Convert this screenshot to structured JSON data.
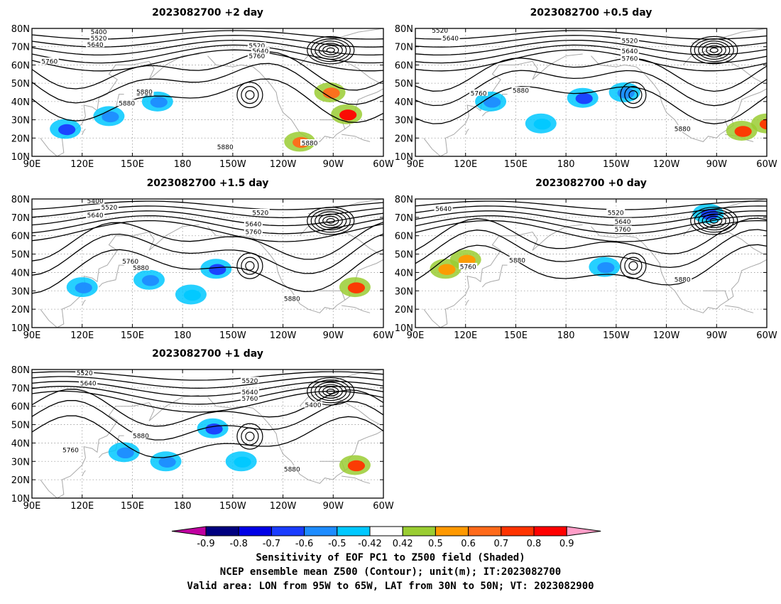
{
  "chart_data": [
    {
      "type": "heatmap",
      "title": "2023082700  +2 day",
      "contour_labels": [
        "5400",
        "5520",
        "5640",
        "5760",
        "5880",
        "5760",
        "5880",
        "5520",
        "5640",
        "5760",
        "5880",
        "5880"
      ],
      "positive_areas": [
        {
          "lon": 278,
          "lat": 33,
          "value": 0.8
        },
        {
          "lon": 268,
          "lat": 45,
          "value": 0.6
        },
        {
          "lon": 250,
          "lat": 18,
          "value": 0.6
        }
      ],
      "negative_areas": [
        {
          "lon": 110,
          "lat": 25,
          "value": -0.7
        },
        {
          "lon": 165,
          "lat": 40,
          "value": -0.6
        },
        {
          "lon": 136,
          "lat": 32,
          "value": -0.6
        }
      ]
    },
    {
      "type": "heatmap",
      "title": "2023082700  +0.5 day",
      "contour_labels": [
        "5520",
        "5640",
        "5520",
        "5640",
        "5760",
        "5760",
        "5880",
        "5880"
      ],
      "positive_areas": [
        {
          "lon": 285,
          "lat": 24,
          "value": 0.7
        },
        {
          "lon": 300,
          "lat": 28,
          "value": 0.7
        }
      ],
      "negative_areas": [
        {
          "lon": 190,
          "lat": 42,
          "value": -0.7
        },
        {
          "lon": 215,
          "lat": 45,
          "value": -0.6
        },
        {
          "lon": 165,
          "lat": 28,
          "value": -0.5
        },
        {
          "lon": 135,
          "lat": 40,
          "value": -0.6
        }
      ]
    },
    {
      "type": "heatmap",
      "title": "2023082700  +1.5 day",
      "contour_labels": [
        "5400",
        "5520",
        "5640",
        "5520",
        "5640",
        "5760",
        "5760",
        "5880",
        "5880"
      ],
      "positive_areas": [
        {
          "lon": 283,
          "lat": 32,
          "value": 0.7
        }
      ],
      "negative_areas": [
        {
          "lon": 200,
          "lat": 42,
          "value": -0.7
        },
        {
          "lon": 160,
          "lat": 36,
          "value": -0.6
        },
        {
          "lon": 120,
          "lat": 32,
          "value": -0.6
        },
        {
          "lon": 185,
          "lat": 28,
          "value": -0.5
        }
      ]
    },
    {
      "type": "heatmap",
      "title": "2023082700  +0 day",
      "contour_labels": [
        "5640",
        "5520",
        "5640",
        "5760",
        "5760",
        "5880",
        "5880"
      ],
      "positive_areas": [
        {
          "lon": 120,
          "lat": 47,
          "value": 0.5
        },
        {
          "lon": 108,
          "lat": 42,
          "value": 0.5
        }
      ],
      "negative_areas": [
        {
          "lon": 265,
          "lat": 72,
          "value": -0.7
        },
        {
          "lon": 203,
          "lat": 43,
          "value": -0.6
        }
      ]
    },
    {
      "type": "heatmap",
      "title": "2023082700  +1 day",
      "contour_labels": [
        "5520",
        "5640",
        "5520",
        "5640",
        "5760",
        "5400",
        "5880",
        "5760",
        "5880"
      ],
      "positive_areas": [
        {
          "lon": 283,
          "lat": 28,
          "value": 0.7
        }
      ],
      "negative_areas": [
        {
          "lon": 198,
          "lat": 48,
          "value": -0.7
        },
        {
          "lon": 170,
          "lat": 30,
          "value": -0.6
        },
        {
          "lon": 215,
          "lat": 30,
          "value": -0.5
        },
        {
          "lon": 145,
          "lat": 35,
          "value": -0.6
        }
      ]
    }
  ],
  "axes": {
    "lat_ticks": [
      "80N",
      "70N",
      "60N",
      "50N",
      "40N",
      "30N",
      "20N",
      "10N"
    ],
    "lon_ticks": [
      "90E",
      "120E",
      "150E",
      "180",
      "150W",
      "120W",
      "90W",
      "60W"
    ],
    "lon_range": [
      90,
      300
    ],
    "lat_range": [
      10,
      80
    ],
    "grid": "dotted"
  },
  "colorbar": {
    "ticks": [
      "-0.9",
      "-0.8",
      "-0.7",
      "-0.6",
      "-0.5",
      "-0.42",
      "0.42",
      "0.5",
      "0.6",
      "0.7",
      "0.8",
      "0.9"
    ],
    "colors": [
      "#00007f",
      "#0000e6",
      "#1a3cff",
      "#1e8cff",
      "#00c8ff",
      "#ffffff",
      "#9acd32",
      "#ff9900",
      "#ff6a1a",
      "#ff3300",
      "#ff0000"
    ],
    "extend_low_color": "#c000a0",
    "extend_high_color": "#ff9ec8"
  },
  "footer": {
    "line1": "Sensitivity of EOF PC1 to Z500 field (Shaded)",
    "line2": "NCEP ensemble mean Z500 (Contour); unit(m); IT:2023082700",
    "line3": "Valid area: LON from 95W to 65W, LAT from 30N to 50N; VT: 2023082900"
  }
}
